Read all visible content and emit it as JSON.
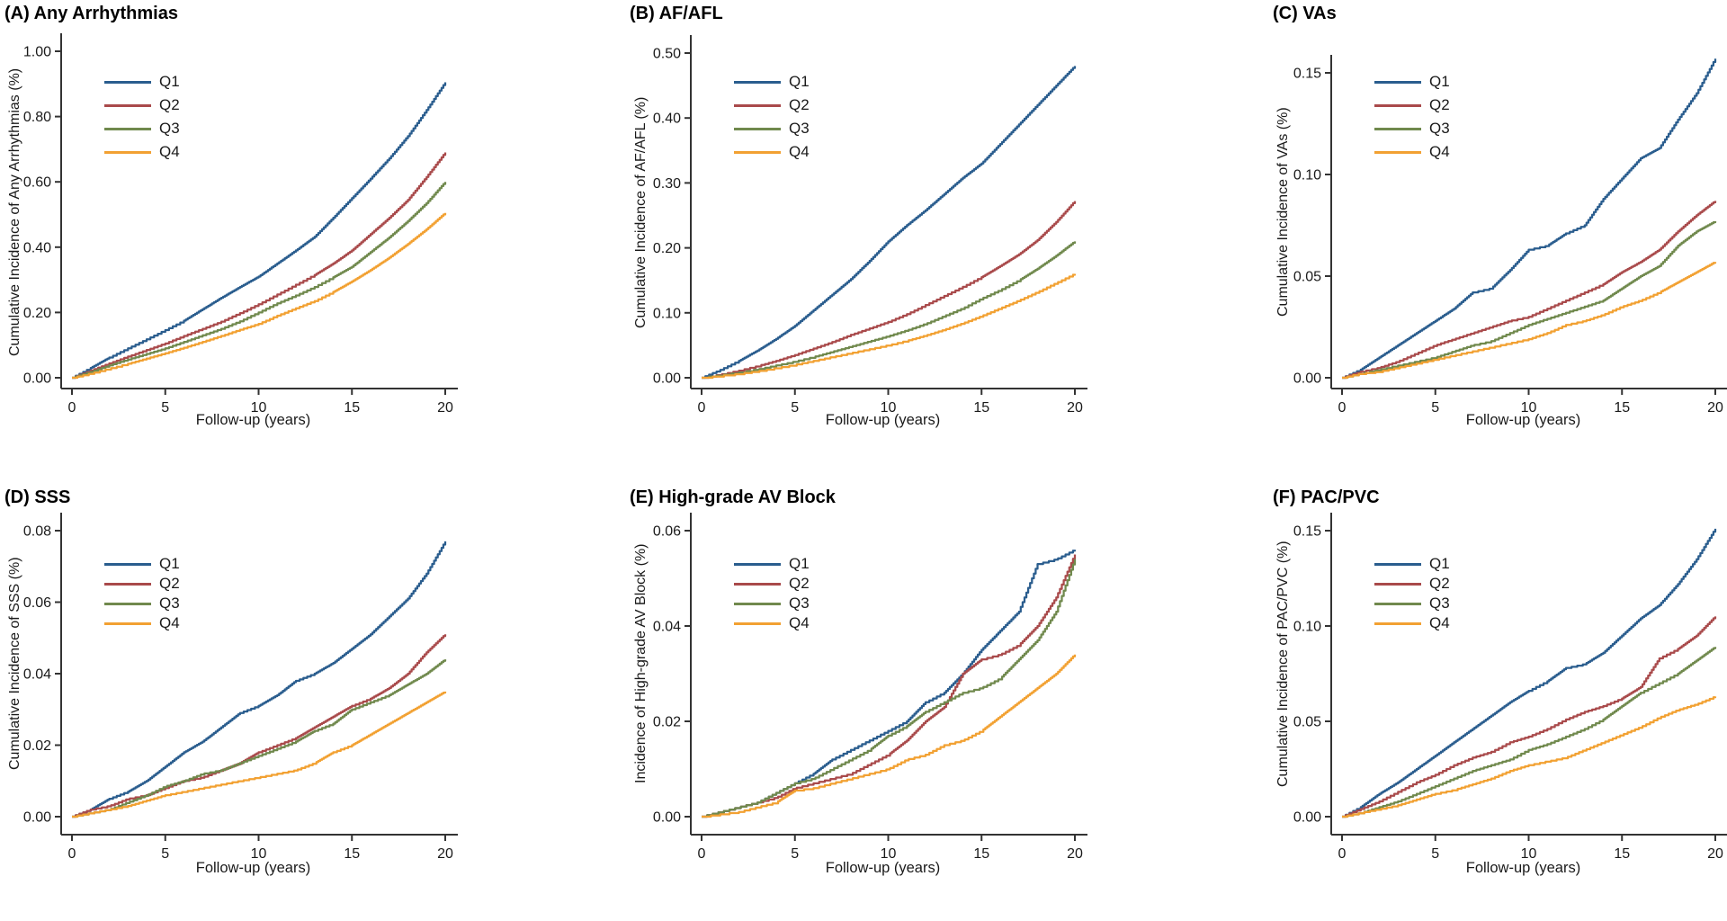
{
  "figure": {
    "x_axis_label_shared": "Follow-up (years)",
    "legend_entries": [
      "Q1",
      "Q2",
      "Q3",
      "Q4"
    ],
    "series_colors": {
      "Q1": "#2a5d8e",
      "Q2": "#a94a4b",
      "Q3": "#70894d",
      "Q4": "#f2a132"
    },
    "axis_color": "#333333",
    "text_color": "#1a1a1a",
    "background_color": "#ffffff"
  },
  "chart_data": [
    {
      "id": "A",
      "type": "line",
      "title": "(A) Any Arrhythmias",
      "xlabel": "Follow-up (years)",
      "ylabel": "Cumulative Incidence of Any Arrhythmias (%)",
      "x": [
        0,
        1,
        2,
        3,
        4,
        5,
        6,
        7,
        8,
        9,
        10,
        11,
        12,
        13,
        14,
        15,
        16,
        17,
        18,
        19,
        20
      ],
      "xticks": [
        0,
        5,
        10,
        15,
        20
      ],
      "yticks": [
        "0.00",
        "0.20",
        "0.40",
        "0.60",
        "0.80",
        "1.00"
      ],
      "ytick_values": [
        0,
        0.2,
        0.4,
        0.6,
        0.8,
        1.0
      ],
      "ylim": [
        0,
        1.05
      ],
      "xlim": [
        0,
        20
      ],
      "grid": false,
      "legend_position": "upper left",
      "series": [
        {
          "name": "Q1",
          "color": "#2a5d8e",
          "values": [
            0,
            0.03,
            0.062,
            0.09,
            0.118,
            0.146,
            0.175,
            0.21,
            0.245,
            0.278,
            0.31,
            0.35,
            0.39,
            0.432,
            0.49,
            0.55,
            0.61,
            0.672,
            0.74,
            0.82,
            0.905
          ]
        },
        {
          "name": "Q2",
          "color": "#a94a4b",
          "values": [
            0,
            0.022,
            0.044,
            0.065,
            0.085,
            0.105,
            0.128,
            0.15,
            0.172,
            0.198,
            0.225,
            0.255,
            0.285,
            0.315,
            0.35,
            0.39,
            0.44,
            0.49,
            0.545,
            0.615,
            0.69
          ]
        },
        {
          "name": "Q3",
          "color": "#70894d",
          "values": [
            0,
            0.018,
            0.038,
            0.056,
            0.073,
            0.09,
            0.11,
            0.13,
            0.15,
            0.173,
            0.2,
            0.228,
            0.252,
            0.278,
            0.308,
            0.34,
            0.385,
            0.43,
            0.48,
            0.535,
            0.6
          ]
        },
        {
          "name": "Q4",
          "color": "#f2a132",
          "values": [
            0,
            0.013,
            0.028,
            0.043,
            0.059,
            0.075,
            0.092,
            0.11,
            0.128,
            0.147,
            0.165,
            0.19,
            0.213,
            0.235,
            0.263,
            0.295,
            0.33,
            0.368,
            0.41,
            0.455,
            0.505
          ]
        }
      ]
    },
    {
      "id": "B",
      "type": "line",
      "title": "(B) AF/AFL",
      "xlabel": "Follow-up (years)",
      "ylabel": "Cumulative Incidence of AF/AFL (%)",
      "x": [
        0,
        1,
        2,
        3,
        4,
        5,
        6,
        7,
        8,
        9,
        10,
        11,
        12,
        13,
        14,
        15,
        16,
        17,
        18,
        19,
        20
      ],
      "xticks": [
        0,
        5,
        10,
        15,
        20
      ],
      "yticks": [
        "0.00",
        "0.10",
        "0.20",
        "0.30",
        "0.40",
        "0.50"
      ],
      "ytick_values": [
        0,
        0.1,
        0.2,
        0.3,
        0.4,
        0.5
      ],
      "ylim": [
        0,
        0.52
      ],
      "xlim": [
        0,
        20
      ],
      "grid": false,
      "legend_position": "upper left",
      "series": [
        {
          "name": "Q1",
          "color": "#2a5d8e",
          "values": [
            0,
            0.012,
            0.026,
            0.042,
            0.06,
            0.08,
            0.104,
            0.128,
            0.152,
            0.18,
            0.21,
            0.235,
            0.258,
            0.283,
            0.308,
            0.33,
            0.36,
            0.39,
            0.42,
            0.45,
            0.48
          ]
        },
        {
          "name": "Q2",
          "color": "#a94a4b",
          "values": [
            0,
            0.005,
            0.011,
            0.018,
            0.026,
            0.035,
            0.045,
            0.055,
            0.066,
            0.076,
            0.086,
            0.098,
            0.112,
            0.126,
            0.14,
            0.155,
            0.172,
            0.19,
            0.212,
            0.24,
            0.272
          ]
        },
        {
          "name": "Q3",
          "color": "#70894d",
          "values": [
            0,
            0.004,
            0.008,
            0.013,
            0.019,
            0.025,
            0.032,
            0.04,
            0.048,
            0.056,
            0.064,
            0.073,
            0.083,
            0.095,
            0.107,
            0.122,
            0.135,
            0.15,
            0.168,
            0.188,
            0.21
          ]
        },
        {
          "name": "Q4",
          "color": "#f2a132",
          "values": [
            0,
            0.003,
            0.006,
            0.01,
            0.015,
            0.02,
            0.026,
            0.032,
            0.038,
            0.044,
            0.05,
            0.057,
            0.065,
            0.074,
            0.084,
            0.095,
            0.107,
            0.119,
            0.132,
            0.146,
            0.16
          ]
        }
      ]
    },
    {
      "id": "C",
      "type": "line",
      "title": "(C) VAs",
      "xlabel": "Follow-up (years)",
      "ylabel": "Cumulative Incidence of VAs (%)",
      "x": [
        0,
        1,
        2,
        3,
        4,
        5,
        6,
        7,
        8,
        9,
        10,
        11,
        12,
        13,
        14,
        15,
        16,
        17,
        18,
        19,
        20
      ],
      "xticks": [
        0,
        5,
        10,
        15,
        20
      ],
      "yticks": [
        "0.00",
        "0.05",
        "0.10",
        "0.15"
      ],
      "ytick_values": [
        0,
        0.05,
        0.1,
        0.15
      ],
      "ylim": [
        0,
        0.16
      ],
      "xlim": [
        0,
        20
      ],
      "grid": false,
      "legend_position": "upper left",
      "series": [
        {
          "name": "Q1",
          "color": "#2a5d8e",
          "values": [
            0,
            0.004,
            0.01,
            0.016,
            0.022,
            0.028,
            0.034,
            0.042,
            0.044,
            0.053,
            0.063,
            0.065,
            0.071,
            0.075,
            0.088,
            0.098,
            0.108,
            0.113,
            0.127,
            0.14,
            0.157
          ]
        },
        {
          "name": "Q2",
          "color": "#a94a4b",
          "values": [
            0,
            0.003,
            0.005,
            0.008,
            0.012,
            0.016,
            0.019,
            0.022,
            0.025,
            0.028,
            0.03,
            0.034,
            0.038,
            0.042,
            0.046,
            0.052,
            0.057,
            0.063,
            0.072,
            0.08,
            0.087
          ]
        },
        {
          "name": "Q3",
          "color": "#70894d",
          "values": [
            0,
            0.002,
            0.004,
            0.006,
            0.008,
            0.01,
            0.013,
            0.016,
            0.018,
            0.022,
            0.026,
            0.029,
            0.032,
            0.035,
            0.038,
            0.044,
            0.05,
            0.055,
            0.065,
            0.072,
            0.077
          ]
        },
        {
          "name": "Q4",
          "color": "#f2a132",
          "values": [
            0,
            0.002,
            0.003,
            0.005,
            0.007,
            0.009,
            0.011,
            0.013,
            0.015,
            0.017,
            0.019,
            0.022,
            0.026,
            0.028,
            0.031,
            0.035,
            0.038,
            0.042,
            0.047,
            0.052,
            0.057
          ]
        }
      ]
    },
    {
      "id": "D",
      "type": "line",
      "title": "(D)  SSS",
      "xlabel": "Follow-up (years)",
      "ylabel": "Cumulative Incidence of SSS (%)",
      "x": [
        0,
        1,
        2,
        3,
        4,
        5,
        6,
        7,
        8,
        9,
        10,
        11,
        12,
        13,
        14,
        15,
        16,
        17,
        18,
        19,
        20
      ],
      "xticks": [
        0,
        5,
        10,
        15,
        20
      ],
      "yticks": [
        "0.00",
        "0.02",
        "0.04",
        "0.06",
        "0.08"
      ],
      "ytick_values": [
        0,
        0.02,
        0.04,
        0.06,
        0.08
      ],
      "ylim": [
        0,
        0.084
      ],
      "xlim": [
        0,
        20
      ],
      "grid": false,
      "legend_position": "upper left",
      "series": [
        {
          "name": "Q1",
          "color": "#2a5d8e",
          "values": [
            0,
            0.002,
            0.005,
            0.007,
            0.01,
            0.014,
            0.018,
            0.021,
            0.025,
            0.029,
            0.031,
            0.034,
            0.038,
            0.04,
            0.043,
            0.047,
            0.051,
            0.056,
            0.061,
            0.068,
            0.077
          ]
        },
        {
          "name": "Q2",
          "color": "#a94a4b",
          "values": [
            0,
            0.002,
            0.003,
            0.005,
            0.006,
            0.008,
            0.01,
            0.011,
            0.013,
            0.015,
            0.018,
            0.02,
            0.022,
            0.025,
            0.028,
            0.031,
            0.033,
            0.036,
            0.04,
            0.046,
            0.051
          ]
        },
        {
          "name": "Q3",
          "color": "#70894d",
          "values": [
            0,
            0.001,
            0.002,
            0.004,
            0.006,
            0.0085,
            0.01,
            0.012,
            0.013,
            0.015,
            0.017,
            0.019,
            0.021,
            0.024,
            0.026,
            0.03,
            0.032,
            0.034,
            0.037,
            0.04,
            0.044
          ]
        },
        {
          "name": "Q4",
          "color": "#f2a132",
          "values": [
            0,
            0.001,
            0.002,
            0.003,
            0.0045,
            0.006,
            0.007,
            0.008,
            0.009,
            0.01,
            0.011,
            0.012,
            0.013,
            0.015,
            0.018,
            0.02,
            0.023,
            0.026,
            0.029,
            0.032,
            0.035
          ]
        }
      ]
    },
    {
      "id": "E",
      "type": "line",
      "title": "(E) High-grade AV Block",
      "xlabel": "Follow-up (years)",
      "ylabel": "Incidence of High-grade AV Block (%)",
      "x": [
        0,
        1,
        2,
        3,
        4,
        5,
        6,
        7,
        8,
        9,
        10,
        11,
        12,
        13,
        14,
        15,
        16,
        17,
        18,
        19,
        20
      ],
      "xticks": [
        0,
        5,
        10,
        15,
        20
      ],
      "yticks": [
        "0.00",
        "0.02",
        "0.04",
        "0.06"
      ],
      "ytick_values": [
        0,
        0.02,
        0.04,
        0.06
      ],
      "ylim": [
        0,
        0.063
      ],
      "xlim": [
        0,
        20
      ],
      "grid": false,
      "legend_position": "upper left",
      "series": [
        {
          "name": "Q1",
          "color": "#2a5d8e",
          "values": [
            0,
            0.001,
            0.002,
            0.003,
            0.005,
            0.007,
            0.009,
            0.012,
            0.014,
            0.016,
            0.018,
            0.02,
            0.024,
            0.026,
            0.03,
            0.035,
            0.039,
            0.043,
            0.053,
            0.054,
            0.056
          ]
        },
        {
          "name": "Q2",
          "color": "#a94a4b",
          "values": [
            0,
            0.001,
            0.002,
            0.003,
            0.004,
            0.006,
            0.007,
            0.008,
            0.009,
            0.011,
            0.013,
            0.016,
            0.02,
            0.023,
            0.03,
            0.033,
            0.034,
            0.036,
            0.04,
            0.046,
            0.055
          ]
        },
        {
          "name": "Q3",
          "color": "#70894d",
          "values": [
            0,
            0.001,
            0.002,
            0.003,
            0.005,
            0.007,
            0.008,
            0.01,
            0.012,
            0.014,
            0.017,
            0.019,
            0.022,
            0.024,
            0.026,
            0.027,
            0.029,
            0.033,
            0.037,
            0.043,
            0.054
          ]
        },
        {
          "name": "Q4",
          "color": "#f2a132",
          "values": [
            0,
            0.0005,
            0.001,
            0.002,
            0.003,
            0.0055,
            0.006,
            0.007,
            0.008,
            0.009,
            0.01,
            0.012,
            0.013,
            0.015,
            0.016,
            0.018,
            0.021,
            0.024,
            0.027,
            0.03,
            0.034
          ]
        }
      ]
    },
    {
      "id": "F",
      "type": "line",
      "title": "(F) PAC/PVC",
      "xlabel": "Follow-up (years)",
      "ylabel": "Cumulative Incidence of PAC/PVC (%)",
      "x": [
        0,
        1,
        2,
        3,
        4,
        5,
        6,
        7,
        8,
        9,
        10,
        11,
        12,
        13,
        14,
        15,
        16,
        17,
        18,
        19,
        20
      ],
      "xticks": [
        0,
        5,
        10,
        15,
        20
      ],
      "yticks": [
        "0.00",
        "0.05",
        "0.10",
        "0.15"
      ],
      "ytick_values": [
        0,
        0.05,
        0.1,
        0.15
      ],
      "ylim": [
        0,
        0.157
      ],
      "xlim": [
        0,
        20
      ],
      "grid": false,
      "legend_position": "upper left",
      "series": [
        {
          "name": "Q1",
          "color": "#2a5d8e",
          "values": [
            0,
            0.005,
            0.012,
            0.018,
            0.025,
            0.032,
            0.039,
            0.046,
            0.053,
            0.06,
            0.066,
            0.071,
            0.078,
            0.08,
            0.086,
            0.095,
            0.104,
            0.111,
            0.122,
            0.135,
            0.151
          ]
        },
        {
          "name": "Q2",
          "color": "#a94a4b",
          "values": [
            0,
            0.004,
            0.008,
            0.013,
            0.018,
            0.022,
            0.027,
            0.031,
            0.034,
            0.039,
            0.042,
            0.046,
            0.051,
            0.055,
            0.058,
            0.062,
            0.068,
            0.083,
            0.088,
            0.095,
            0.105
          ]
        },
        {
          "name": "Q3",
          "color": "#70894d",
          "values": [
            0,
            0.002,
            0.005,
            0.008,
            0.012,
            0.016,
            0.02,
            0.024,
            0.027,
            0.03,
            0.035,
            0.038,
            0.042,
            0.046,
            0.051,
            0.058,
            0.065,
            0.07,
            0.075,
            0.082,
            0.089
          ]
        },
        {
          "name": "Q4",
          "color": "#f2a132",
          "values": [
            0,
            0.002,
            0.004,
            0.006,
            0.009,
            0.012,
            0.014,
            0.017,
            0.02,
            0.024,
            0.027,
            0.029,
            0.031,
            0.035,
            0.039,
            0.043,
            0.047,
            0.052,
            0.056,
            0.059,
            0.063
          ]
        }
      ]
    }
  ]
}
